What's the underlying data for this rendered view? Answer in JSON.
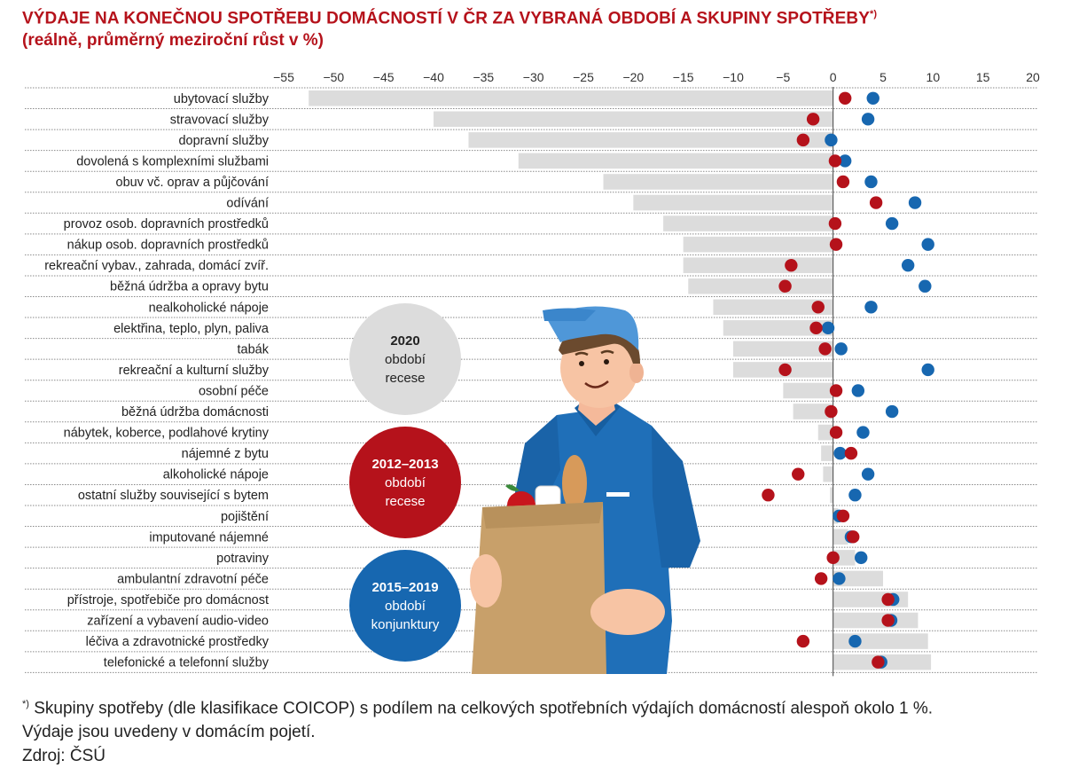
{
  "title_line1": "VÝDAJE NA KONEČNOU SPOTŘEBU DOMÁCNOSTÍ V ČR ZA VYBRANÁ OBDOBÍ A SKUPINY SPOTŘEBY",
  "title_mark": "*)",
  "title_line2": "(reálně, průměrný meziroční růst v %)",
  "legend": {
    "item_2020": {
      "line1": "2020",
      "line2": "období",
      "line3": "recese",
      "color": "#dcdcdc"
    },
    "item_2012": {
      "line1": "2012–2013",
      "line2": "období",
      "line3": "recese",
      "color": "#b5121b"
    },
    "item_2015": {
      "line1": "2015–2019",
      "line2": "období",
      "line3": "konjunktury",
      "color": "#1767b0"
    }
  },
  "footnote_mark": "*)",
  "footnote_text": "Skupiny spotřeby (dle klasifikace COICOP) s podílem na celkových spotřebních výdajích domácností alespoň okolo 1 %.",
  "note": "Výdaje jsou uvedeny v domácím pojetí.",
  "source": "Zdroj: ČSÚ",
  "chart_data": {
    "type": "bar",
    "orientation": "horizontal",
    "xlim": [
      -55,
      20
    ],
    "xticks": [
      -55,
      -50,
      -45,
      -40,
      -35,
      -30,
      -25,
      -20,
      -15,
      -10,
      -5,
      0,
      5,
      10,
      15,
      20
    ],
    "xtick_labels": [
      "−55",
      "−50",
      "−45",
      "−40",
      "−35",
      "−30",
      "−25",
      "−20",
      "−15",
      "−10",
      "−5",
      "0",
      "5",
      "10",
      "15",
      "20"
    ],
    "categories": [
      "ubytovací služby",
      "stravovací služby",
      "dopravní služby",
      "dovolená s komplexními službami",
      "obuv vč. oprav a půjčování",
      "odívání",
      "provoz osob. dopravních prostředků",
      "nákup osob. dopravních prostředků",
      "rekreační vybav., zahrada, domácí zvíř.",
      "běžná údržba a opravy bytu",
      "nealkoholické nápoje",
      "elektřina, teplo, plyn, paliva",
      "tabák",
      "rekreační a kulturní služby",
      "osobní péče",
      "běžná údržba domácnosti",
      "nábytek, koberce, podlahové krytiny",
      "nájemné z bytu",
      "alkoholické nápoje",
      "ostatní služby související s bytem",
      "pojištění",
      "imputované nájemné",
      "potraviny",
      "ambulantní zdravotní péče",
      "přístroje, spotřebiče pro domácnost",
      "zařízení a vybavení audio-video",
      "léčiva a zdravotnické prostředky",
      "telefonické a telefonní služby"
    ],
    "series": [
      {
        "name": "2020 období recese",
        "color": "#dcdcdc",
        "mark": "bar",
        "values": [
          -52.5,
          -40,
          -36.5,
          -31.5,
          -23,
          -20,
          -17,
          -15,
          -15,
          -14.5,
          -12,
          -11,
          -10,
          -10,
          -5,
          -4,
          -1.5,
          -1.2,
          -1,
          -0.3,
          0.5,
          1.5,
          2.2,
          5,
          7.5,
          8.5,
          9.5,
          9.8
        ]
      },
      {
        "name": "2012–2013 období recese",
        "color": "#b5121b",
        "mark": "dot",
        "values": [
          1.2,
          -2,
          -3,
          0.2,
          1,
          4.3,
          0.2,
          0.3,
          -4.2,
          -4.8,
          -1.5,
          -1.7,
          -0.8,
          -4.8,
          0.3,
          -0.2,
          0.3,
          1.8,
          -3.5,
          -6.5,
          1,
          2,
          0,
          -1.2,
          5.5,
          5.5,
          -3,
          4.5
        ]
      },
      {
        "name": "2015–2019 období konjunktury",
        "color": "#1767b0",
        "mark": "dot",
        "values": [
          4,
          3.5,
          -0.2,
          1.2,
          3.8,
          8.2,
          5.9,
          9.5,
          7.5,
          9.2,
          3.8,
          -0.5,
          0.8,
          9.5,
          2.5,
          5.9,
          3,
          0.7,
          3.5,
          2.2,
          0.6,
          1.8,
          2.8,
          0.6,
          6,
          5.8,
          2.2,
          4.8
        ]
      }
    ]
  }
}
